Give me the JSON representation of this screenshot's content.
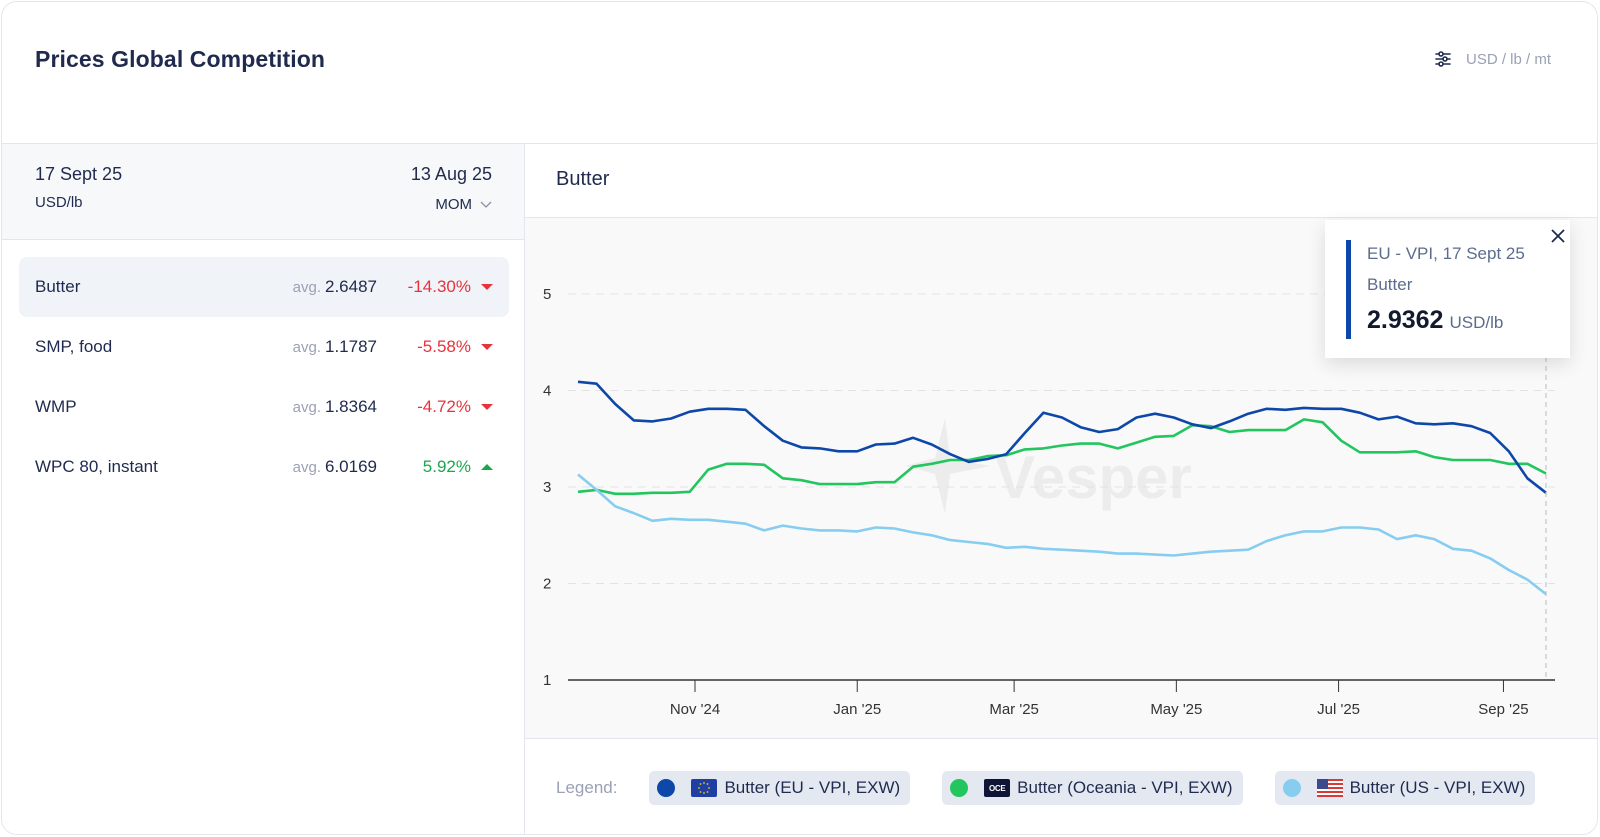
{
  "header": {
    "title": "Prices Global Competition",
    "unit_switch_icon": "sliders-icon",
    "unit_switch_label": "USD / lb / mt"
  },
  "summary": {
    "date": "17 Sept 25",
    "unit": "USD/lb",
    "compare_date": "13 Aug 25",
    "compare_mode": "MOM"
  },
  "products": [
    {
      "name": "Butter",
      "avg_label": "avg.",
      "avg": "2.6487",
      "change": "-14.30%",
      "direction": "down",
      "active": true
    },
    {
      "name": "SMP, food",
      "avg_label": "avg.",
      "avg": "1.1787",
      "change": "-5.58%",
      "direction": "down",
      "active": false
    },
    {
      "name": "WMP",
      "avg_label": "avg.",
      "avg": "1.8364",
      "change": "-4.72%",
      "direction": "down",
      "active": false
    },
    {
      "name": "WPC 80, instant",
      "avg_label": "avg.",
      "avg": "6.0169",
      "change": "5.92%",
      "direction": "up",
      "active": false
    }
  ],
  "colors": {
    "down": "#e8323c",
    "up": "#18a84a",
    "eu": "#0d47a8",
    "oceania": "#22c55e",
    "us": "#86cdf0"
  },
  "tooltip": {
    "series": "EU - VPI, 17 Sept 25",
    "product": "Butter",
    "value": "2.9362",
    "unit": "USD/lb"
  },
  "legend": {
    "label": "Legend:",
    "items": [
      {
        "text": "Butter (EU - VPI, EXW)",
        "flag": "eu-flag-icon",
        "color": "#0d47a8"
      },
      {
        "text": "Butter (Oceania - VPI, EXW)",
        "flag": "oceania-badge-icon",
        "badge": "OCE",
        "color": "#22c55e"
      },
      {
        "text": "Butter (US - VPI, EXW)",
        "flag": "us-flag-icon",
        "color": "#86cdf0"
      }
    ]
  },
  "chart_data": {
    "type": "line",
    "title": "Butter",
    "xlabel": "",
    "ylabel": "USD/lb",
    "ylim": [
      1,
      5.6
    ],
    "yticks": [
      1,
      2,
      3,
      4,
      5
    ],
    "grid": true,
    "watermark": "Vesper",
    "x_start": "2024-09-18",
    "x_end": "2025-09-17",
    "x_interval": "weekly",
    "xticks": [
      {
        "label": "Nov '24",
        "date": "2024-11-01"
      },
      {
        "label": "Jan '25",
        "date": "2025-01-01"
      },
      {
        "label": "Mar '25",
        "date": "2025-03-01"
      },
      {
        "label": "May '25",
        "date": "2025-05-01"
      },
      {
        "label": "Jul '25",
        "date": "2025-07-01"
      },
      {
        "label": "Sep '25",
        "date": "2025-09-01"
      }
    ],
    "series": [
      {
        "name": "Butter (EU - VPI, EXW)",
        "color": "#0d47a8",
        "values": [
          4.09,
          4.07,
          3.86,
          3.69,
          3.68,
          3.71,
          3.78,
          3.81,
          3.81,
          3.8,
          3.63,
          3.48,
          3.41,
          3.4,
          3.37,
          3.37,
          3.44,
          3.45,
          3.51,
          3.44,
          3.34,
          3.26,
          3.29,
          3.34,
          3.56,
          3.77,
          3.72,
          3.62,
          3.57,
          3.6,
          3.72,
          3.76,
          3.72,
          3.65,
          3.61,
          3.68,
          3.76,
          3.81,
          3.8,
          3.82,
          3.81,
          3.81,
          3.77,
          3.7,
          3.73,
          3.66,
          3.65,
          3.66,
          3.63,
          3.56,
          3.37,
          3.09,
          2.94
        ]
      },
      {
        "name": "Butter (Oceania - VPI, EXW)",
        "color": "#22c55e",
        "values": [
          2.95,
          2.97,
          2.93,
          2.93,
          2.94,
          2.94,
          2.95,
          3.18,
          3.24,
          3.24,
          3.23,
          3.09,
          3.07,
          3.03,
          3.03,
          3.03,
          3.05,
          3.05,
          3.21,
          3.24,
          3.28,
          3.28,
          3.32,
          3.33,
          3.39,
          3.4,
          3.43,
          3.45,
          3.45,
          3.4,
          3.46,
          3.52,
          3.53,
          3.64,
          3.63,
          3.57,
          3.59,
          3.59,
          3.59,
          3.7,
          3.67,
          3.48,
          3.36,
          3.36,
          3.36,
          3.37,
          3.31,
          3.28,
          3.28,
          3.28,
          3.24,
          3.24,
          3.14
        ]
      },
      {
        "name": "Butter (US - VPI, EXW)",
        "color": "#86cdf0",
        "values": [
          3.13,
          2.97,
          2.8,
          2.73,
          2.65,
          2.67,
          2.66,
          2.66,
          2.64,
          2.62,
          2.55,
          2.6,
          2.57,
          2.55,
          2.55,
          2.54,
          2.58,
          2.57,
          2.53,
          2.5,
          2.45,
          2.43,
          2.41,
          2.37,
          2.38,
          2.36,
          2.35,
          2.34,
          2.33,
          2.31,
          2.31,
          2.3,
          2.29,
          2.31,
          2.33,
          2.34,
          2.35,
          2.44,
          2.5,
          2.54,
          2.54,
          2.58,
          2.58,
          2.56,
          2.46,
          2.5,
          2.46,
          2.36,
          2.34,
          2.26,
          2.14,
          2.04,
          1.89
        ]
      }
    ],
    "highlight": {
      "series": "Butter (EU - VPI, EXW)",
      "date": "2025-09-17",
      "value": 2.9362
    }
  }
}
